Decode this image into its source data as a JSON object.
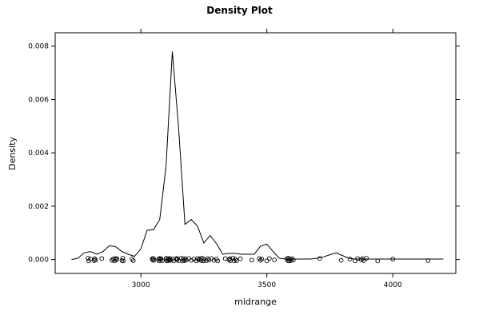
{
  "chart_data": {
    "type": "line",
    "title": "Density Plot",
    "xlabel": "midrange",
    "ylabel": "Density",
    "xlim": [
      2660,
      4250
    ],
    "ylim": [
      -0.00052,
      0.0085
    ],
    "x_ticks": [
      3000,
      3500,
      4000
    ],
    "x_tick_labels": [
      "3000",
      "3500",
      "4000"
    ],
    "y_ticks": [
      0,
      0.002,
      0.004,
      0.006,
      0.008
    ],
    "y_tick_labels": [
      "0.000",
      "0.002",
      "0.004",
      "0.006",
      "0.008"
    ],
    "grid": false,
    "legend": false,
    "series": [
      {
        "line": true,
        "x": [
          2725,
          2750,
          2775,
          2800,
          2825,
          2850,
          2875,
          2900,
          2925,
          2950,
          2975,
          3000,
          3025,
          3050,
          3075,
          3100,
          3125,
          3150,
          3175,
          3200,
          3225,
          3250,
          3275,
          3300,
          3325,
          3350,
          3375,
          3400,
          3425,
          3450,
          3475,
          3500,
          3525,
          3550,
          3575,
          3600,
          3625,
          3650,
          3675,
          3700,
          3725,
          3750,
          3775,
          3800,
          3825,
          3850,
          3875,
          3900,
          3925,
          3950,
          3975,
          4000,
          4025,
          4050,
          4075,
          4100,
          4125,
          4150,
          4175,
          4200
        ],
        "y": [
          0.0,
          5e-05,
          0.00025,
          0.0003,
          0.0002,
          0.0003,
          0.00052,
          0.00048,
          0.0003,
          0.0002,
          0.00012,
          0.0004,
          0.0011,
          0.00112,
          0.0015,
          0.0035,
          0.0078,
          0.0049,
          0.00132,
          0.0015,
          0.00125,
          0.00062,
          0.0009,
          0.0006,
          0.0002,
          0.00023,
          0.00023,
          0.0002,
          0.0002,
          0.0002,
          0.0005,
          0.00058,
          0.0003,
          5e-05,
          2e-05,
          2e-05,
          2e-05,
          2e-05,
          2e-05,
          5e-05,
          0.0001,
          0.00018,
          0.00025,
          0.00015,
          5e-05,
          2e-05,
          2e-05,
          2e-05,
          2e-05,
          2e-05,
          2e-05,
          2e-05,
          2e-05,
          2e-05,
          2e-05,
          2e-05,
          2e-05,
          2e-05,
          2e-05,
          2e-05
        ]
      }
    ],
    "rug": {
      "points": [
        2790,
        2793,
        2800,
        2815,
        2817,
        2820,
        2845,
        2885,
        2890,
        2895,
        2898,
        2903,
        2905,
        2925,
        2928,
        2930,
        2965,
        2970,
        3045,
        3047,
        3050,
        3052,
        3070,
        3072,
        3075,
        3078,
        3080,
        3085,
        3100,
        3102,
        3105,
        3108,
        3110,
        3113,
        3115,
        3118,
        3125,
        3130,
        3140,
        3143,
        3145,
        3150,
        3160,
        3165,
        3168,
        3173,
        3175,
        3180,
        3190,
        3200,
        3210,
        3220,
        3225,
        3230,
        3235,
        3240,
        3243,
        3248,
        3250,
        3260,
        3265,
        3270,
        3280,
        3290,
        3300,
        3305,
        3335,
        3350,
        3353,
        3355,
        3365,
        3370,
        3375,
        3380,
        3395,
        3440,
        3470,
        3475,
        3480,
        3500,
        3510,
        3530,
        3580,
        3583,
        3585,
        3588,
        3590,
        3595,
        3600,
        3605,
        3710,
        3795,
        3830,
        3850,
        3860,
        3875,
        3880,
        3885,
        3895,
        3940,
        4000,
        4140
      ],
      "y": [
        5e-05,
        -5e-05,
        2e-05,
        -4e-05,
        3e-05,
        -2e-05,
        4e-05,
        -3e-05,
        2e-05,
        -5e-05,
        4e-05,
        -1e-05,
        3e-05,
        -4e-05
      ]
    }
  }
}
